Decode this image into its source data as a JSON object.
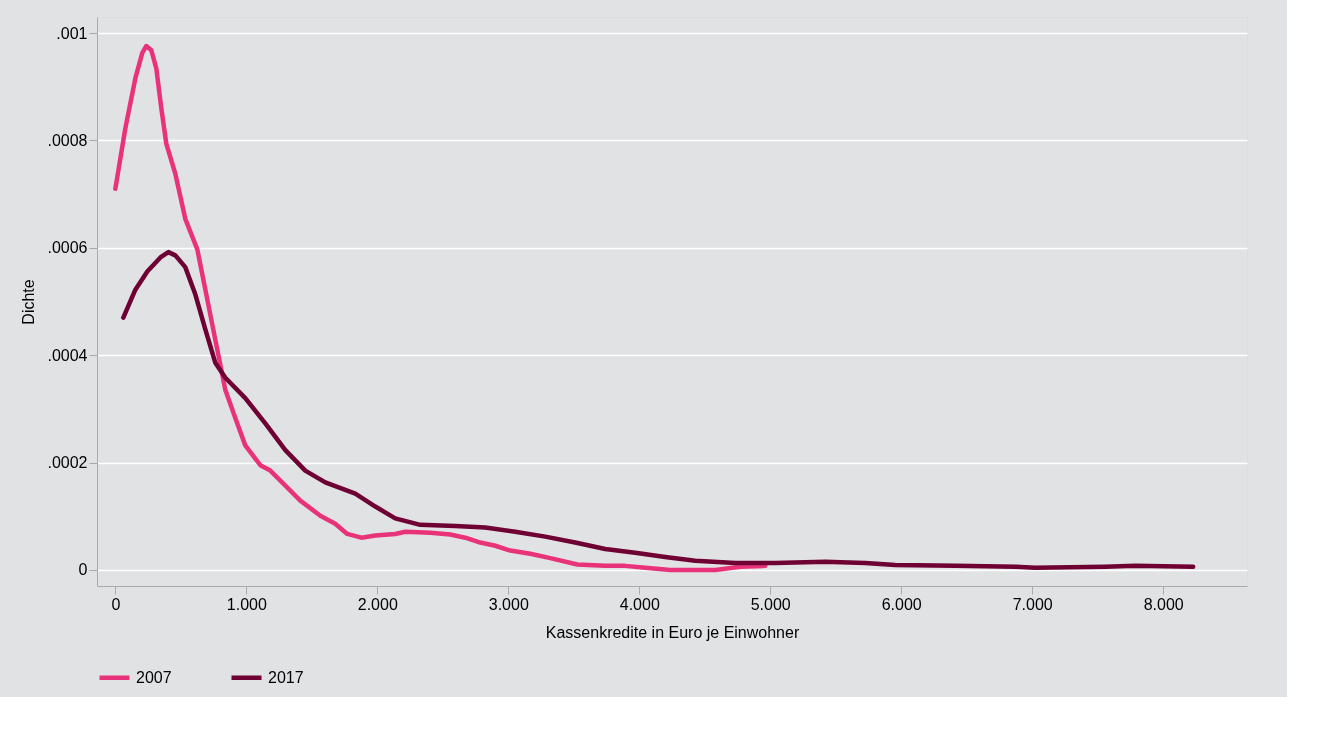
{
  "chart_data": {
    "type": "line",
    "xlabel": "Kassenkredite in Euro je Einwohner",
    "ylabel": "Dichte",
    "xlim": [
      -140,
      8640
    ],
    "ylim": [
      -3e-05,
      0.00103
    ],
    "xticks": [
      {
        "value": 0,
        "label": "0"
      },
      {
        "value": 1000,
        "label": "1.000"
      },
      {
        "value": 2000,
        "label": "2.000"
      },
      {
        "value": 3000,
        "label": "3.000"
      },
      {
        "value": 4000,
        "label": "4.000"
      },
      {
        "value": 5000,
        "label": "5.000"
      },
      {
        "value": 6000,
        "label": "6.000"
      },
      {
        "value": 7000,
        "label": "7.000"
      },
      {
        "value": 8000,
        "label": "8.000"
      }
    ],
    "yticks": [
      {
        "value": 0,
        "label": "0"
      },
      {
        "value": 0.0002,
        "label": ".0002"
      },
      {
        "value": 0.0004,
        "label": ".0004"
      },
      {
        "value": 0.0006,
        "label": ".0006"
      },
      {
        "value": 0.0008,
        "label": ".0008"
      },
      {
        "value": 0.001,
        "label": ".001"
      }
    ],
    "grid": "y",
    "legend": "bottom",
    "line_style": "solid",
    "marker": "none",
    "series": [
      {
        "name": "2007",
        "color": "#e8337a",
        "x": [
          0,
          76,
          153,
          206,
          237,
          275,
          313,
          351,
          389,
          458,
          534,
          626,
          702,
          763,
          802,
          840,
          916,
          992,
          1107,
          1183,
          1298,
          1412,
          1565,
          1679,
          1771,
          1878,
          1985,
          2137,
          2214,
          2405,
          2557,
          2672,
          2786,
          2901,
          3015,
          3168,
          3321,
          3527,
          3740,
          3893,
          4046,
          4237,
          4580,
          4771,
          4962
        ],
        "values": [
          0.00071,
          0.000822,
          0.000916,
          0.000963,
          0.000976,
          0.000968,
          0.000934,
          0.00086,
          0.000794,
          0.000738,
          0.000654,
          0.000597,
          0.000504,
          0.000429,
          0.000382,
          0.000335,
          0.000283,
          0.000232,
          0.000195,
          0.000185,
          0.000157,
          0.000129,
          0.000101,
          8.6e-05,
          6.7e-05,
          6e-05,
          6.4e-05,
          6.7e-05,
          7.1e-05,
          6.9e-05,
          6.6e-05,
          6e-05,
          5.1e-05,
          4.5e-05,
          3.6e-05,
          3e-05,
          2.2e-05,
          1e-05,
          7.5e-06,
          7.5e-06,
          4e-06,
          0,
          0,
          6e-06,
          7.5e-06
        ]
      },
      {
        "name": "2017",
        "color": "#6e0033",
        "x": [
          61,
          153,
          244,
          344,
          405,
          458,
          534,
          611,
          687,
          763,
          840,
          992,
          1145,
          1298,
          1450,
          1603,
          1832,
          1985,
          2137,
          2328,
          2595,
          2824,
          3053,
          3282,
          3511,
          3740,
          3969,
          4198,
          4427,
          4733,
          5038,
          5420,
          5725,
          5954,
          6412,
          6870,
          7023,
          7557,
          7786,
          8229
        ],
        "values": [
          0.00047,
          0.000522,
          0.000556,
          0.000582,
          0.000592,
          0.000586,
          0.000564,
          0.000513,
          0.000448,
          0.000386,
          0.000358,
          0.00032,
          0.000273,
          0.000223,
          0.000185,
          0.000163,
          0.000142,
          0.000118,
          9.6e-05,
          8.4e-05,
          8.2e-05,
          7.9e-05,
          7.1e-05,
          6.2e-05,
          5.1e-05,
          3.9e-05,
          3.2e-05,
          2.4e-05,
          1.7e-05,
          1.3e-05,
          1.3e-05,
          1.5e-05,
          1.3e-05,
          9e-06,
          7.5e-06,
          6e-06,
          4e-06,
          6e-06,
          7.5e-06,
          6e-06
        ]
      }
    ]
  }
}
